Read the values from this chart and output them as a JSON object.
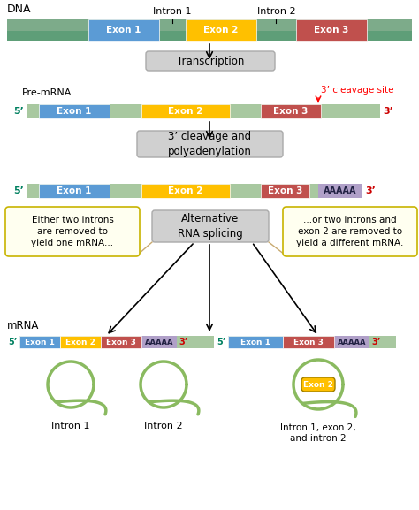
{
  "bg_color": "#ffffff",
  "colors": {
    "exon1": "#5b9bd5",
    "exon2": "#ffc000",
    "exon3": "#c0504d",
    "dna_top": "#7dab8a",
    "dna_bot": "#5e9e78",
    "intron_bg": "#a8c8b8",
    "premrna_bg": "#a8c8a0",
    "polyA": "#b0a0c8",
    "box_fill": "#d0d0d0",
    "box_edge": "#aaaaaa",
    "note_yellow": "#fffff0",
    "note_border": "#c8b400",
    "teal5prime": "#008060",
    "red3prime": "#cc0000",
    "lariat_green": "#8aba60",
    "arrow_tan": "#c8aa70"
  },
  "labels": {
    "dna": "DNA",
    "intron1": "Intron 1",
    "intron2": "Intron 2",
    "exon1": "Exon 1",
    "exon2": "Exon 2",
    "exon3": "Exon 3",
    "transcription": "Transcription",
    "premrna": "Pre-mRNA",
    "cleavage_site": "3’ cleavage site",
    "cleavage_box": "3’ cleavage and\npolyadenylation",
    "alt_splicing": "Alternative\nRNA splicing",
    "mrna": "mRNA",
    "left_note": "Either two introns\nare removed to\nyield one mRNA...",
    "right_note": "...or two introns and\nexon 2 are removed to\nyield a different mRNA.",
    "intron1_lariat": "Intron 1",
    "intron2_lariat": "Intron 2",
    "intron1_exon2_intron2": "Intron 1, exon 2,\nand intron 2",
    "five_prime": "5’",
    "three_prime": "3’",
    "polyA_text": "AAAAA"
  }
}
